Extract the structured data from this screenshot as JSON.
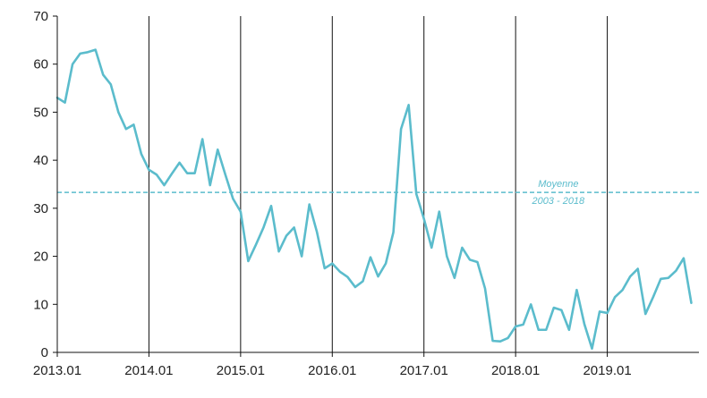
{
  "chart_data": {
    "type": "line",
    "x_start": "2013.01",
    "x_step": "monthly",
    "xlim": [
      "2013.01",
      "2019.12"
    ],
    "ylim": [
      0,
      70
    ],
    "y_ticks": [
      0,
      10,
      20,
      30,
      40,
      50,
      60,
      70
    ],
    "x_ticks": [
      "2013.01",
      "2014.01",
      "2015.01",
      "2016.01",
      "2017.01",
      "2018.01",
      "2019.01"
    ],
    "vertical_gridlines_at": [
      "2014.01",
      "2015.01",
      "2016.01",
      "2017.01",
      "2018.01",
      "2019.01"
    ],
    "series": [
      {
        "color": "#5bbccc",
        "values": [
          53,
          52,
          60,
          62.2,
          62.5,
          63,
          57.8,
          55.8,
          50,
          46.5,
          47.4,
          41.3,
          38,
          37,
          34.8,
          37.2,
          39.5,
          37.3,
          37.3,
          44.4,
          34.8,
          42.2,
          37,
          32,
          29.3,
          19,
          22.4,
          26,
          30.5,
          21,
          24.3,
          26,
          20,
          30.8,
          25,
          17.5,
          18.5,
          16.8,
          15.7,
          13.6,
          14.8,
          19.8,
          15.8,
          18.5,
          25,
          46.5,
          51.5,
          33,
          27.8,
          21.8,
          29.3,
          20,
          15.5,
          21.8,
          19.3,
          18.8,
          13.3,
          2.4,
          2.3,
          3,
          5.4,
          5.8,
          10,
          4.7,
          4.7,
          9.3,
          8.8,
          4.7,
          13,
          5.9,
          0.8,
          8.5,
          8.2,
          11.5,
          13,
          15.8,
          17.4,
          8,
          11.5,
          15.3,
          15.5,
          17,
          19.6,
          10.3
        ]
      }
    ],
    "reference_line": {
      "value": 33.3,
      "color": "#5bbccc",
      "style": "dashed",
      "label_line1": "Moyenne",
      "label_line2": "2003 - 2018"
    },
    "grid": false,
    "legend": "none"
  }
}
